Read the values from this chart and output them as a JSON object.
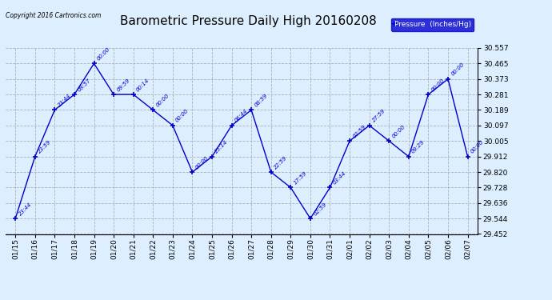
{
  "title": "Barometric Pressure Daily High 20160208",
  "copyright": "Copyright 2016 Cartronics.com",
  "legend_label": "Pressure  (Inches/Hg)",
  "x_labels": [
    "01/15",
    "01/16",
    "01/17",
    "01/18",
    "01/19",
    "01/20",
    "01/21",
    "01/22",
    "01/23",
    "01/24",
    "01/25",
    "01/26",
    "01/27",
    "01/28",
    "01/29",
    "01/30",
    "01/31",
    "02/01",
    "02/02",
    "02/03",
    "02/04",
    "02/05",
    "02/06",
    "02/07"
  ],
  "y_values": [
    29.544,
    29.912,
    30.189,
    30.281,
    30.465,
    30.281,
    30.281,
    30.189,
    30.097,
    29.82,
    29.912,
    30.097,
    30.189,
    29.82,
    29.728,
    29.544,
    29.728,
    30.005,
    30.097,
    30.005,
    29.912,
    30.281,
    30.373,
    29.912
  ],
  "point_labels": [
    "23:44",
    "23:59",
    "23:44",
    "09:57",
    "00:00",
    "09:59",
    "00:14",
    "00:00",
    "00:00",
    "00:00",
    "25:14",
    "06:44",
    "08:59",
    "22:59",
    "17:59",
    "02:59",
    "03:44",
    "02:59",
    "27:59",
    "00:00",
    "09:29",
    "00:00",
    "00:00",
    "00:00"
  ],
  "ylim_min": 29.452,
  "ylim_max": 30.557,
  "y_ticks": [
    29.452,
    29.544,
    29.636,
    29.728,
    29.82,
    29.912,
    30.005,
    30.097,
    30.189,
    30.281,
    30.373,
    30.465,
    30.557
  ],
  "line_color": "#0000CC",
  "background_color": "#DDEEFF",
  "grid_color": "#AAAAAA",
  "title_fontsize": 11,
  "label_fontsize": 7,
  "legend_bg": "#0000CC",
  "legend_fg": "#FFFFFF"
}
